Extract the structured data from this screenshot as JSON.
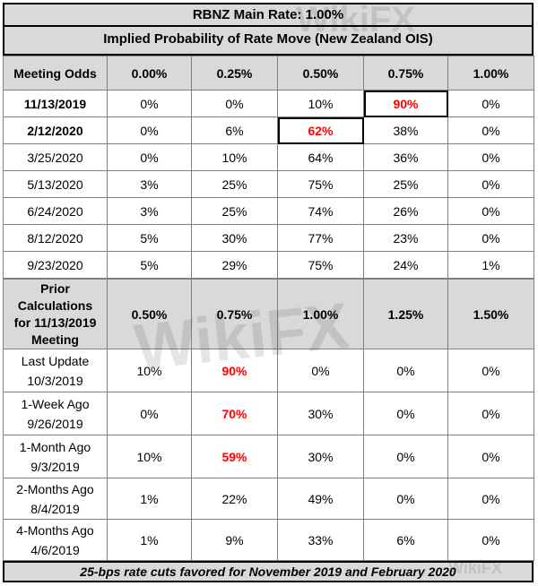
{
  "header": {
    "title": "RBNZ Main Rate: 1.00%",
    "subtitle": "Implied Probability of Rate Move (New Zealand OIS)"
  },
  "odds_table": {
    "corner_label": "Meeting Odds",
    "columns": [
      "0.00%",
      "0.25%",
      "0.50%",
      "0.75%",
      "1.00%"
    ],
    "rows": [
      {
        "date": "11/13/2019",
        "values": [
          "0%",
          "0%",
          "10%",
          "90%",
          "0%"
        ]
      },
      {
        "date": "2/12/2020",
        "values": [
          "0%",
          "6%",
          "62%",
          "38%",
          "0%"
        ]
      },
      {
        "date": "3/25/2020",
        "values": [
          "0%",
          "10%",
          "64%",
          "36%",
          "0%"
        ]
      },
      {
        "date": "5/13/2020",
        "values": [
          "3%",
          "25%",
          "75%",
          "25%",
          "0%"
        ]
      },
      {
        "date": "6/24/2020",
        "values": [
          "3%",
          "25%",
          "74%",
          "26%",
          "0%"
        ]
      },
      {
        "date": "8/12/2020",
        "values": [
          "5%",
          "30%",
          "77%",
          "23%",
          "0%"
        ]
      },
      {
        "date": "9/23/2020",
        "values": [
          "5%",
          "29%",
          "75%",
          "24%",
          "1%"
        ]
      }
    ]
  },
  "prior_table": {
    "corner_label": "Prior Calculations for 11/13/2019 Meeting",
    "columns": [
      "0.50%",
      "0.75%",
      "1.00%",
      "1.25%",
      "1.50%"
    ],
    "rows": [
      {
        "label": "Last Update",
        "date": "10/3/2019",
        "values": [
          "10%",
          "90%",
          "0%",
          "0%",
          "0%"
        ]
      },
      {
        "label": "1-Week Ago",
        "date": "9/26/2019",
        "values": [
          "0%",
          "70%",
          "30%",
          "0%",
          "0%"
        ]
      },
      {
        "label": "1-Month Ago",
        "date": "9/3/2019",
        "values": [
          "10%",
          "59%",
          "30%",
          "0%",
          "0%"
        ]
      },
      {
        "label": "2-Months Ago",
        "date": "8/4/2019",
        "values": [
          "1%",
          "22%",
          "49%",
          "0%",
          "0%"
        ]
      },
      {
        "label": "4-Months Ago",
        "date": "4/6/2019",
        "values": [
          "1%",
          "9%",
          "33%",
          "6%",
          "0%"
        ]
      }
    ]
  },
  "footer": {
    "note": "25-bps rate cuts favored for November 2019 and February 2020"
  },
  "watermark": {
    "text": "WikiFX"
  },
  "colors": {
    "highlight": "#ff0000",
    "header_bg": "#d9d9d9"
  }
}
